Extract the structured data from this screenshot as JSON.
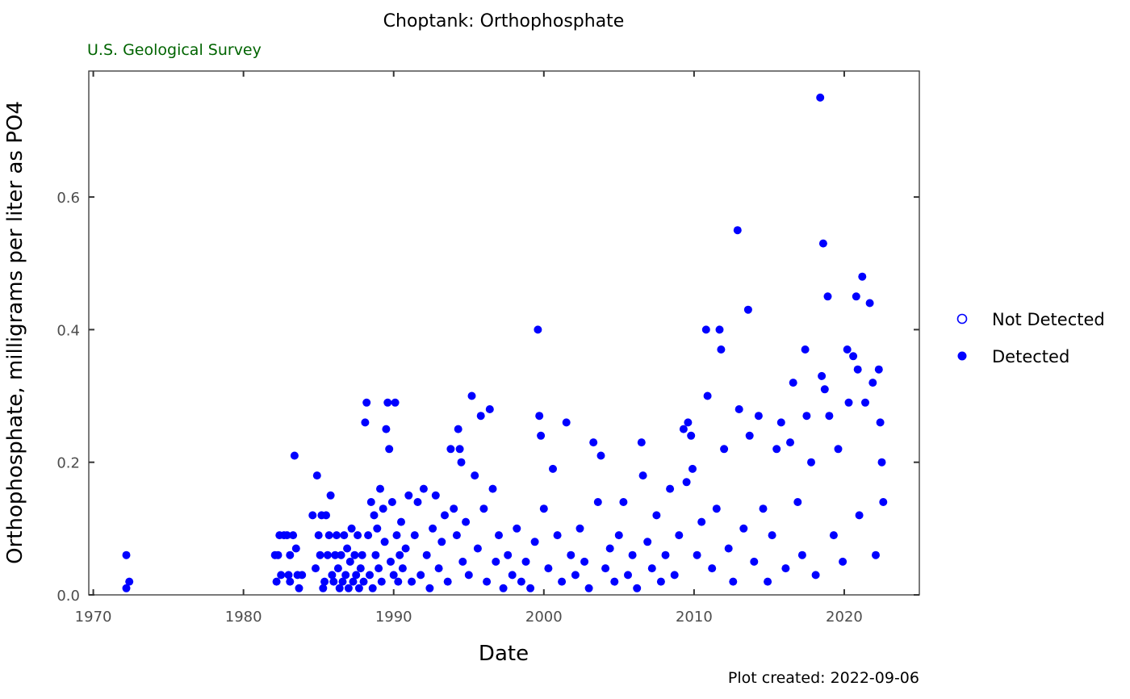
{
  "chart_data": {
    "type": "scatter",
    "title": "Choptank: Orthophosphate",
    "subtitle": "U.S. Geological Survey",
    "xlabel": "Date",
    "ylabel": "Orthophosphate, milligrams per liter as PO4",
    "caption": "Plot created: 2022-09-06",
    "xlim": [
      1969.7,
      2025.0
    ],
    "ylim": [
      0.0,
      0.79
    ],
    "x_ticks": [
      1970,
      1980,
      1990,
      2000,
      2010,
      2020
    ],
    "y_ticks": [
      0.0,
      0.2,
      0.4,
      0.6
    ],
    "y_tick_labels": [
      "0.0",
      "0.2",
      "0.4",
      "0.6"
    ],
    "grid": false,
    "legend_position": "right",
    "colors": {
      "points": "#0000ff",
      "subtitle": "#006400",
      "axis": "#333333"
    },
    "series": [
      {
        "name": "Not Detected",
        "marker": "open-circle",
        "points": []
      },
      {
        "name": "Detected",
        "marker": "filled-circle",
        "points": [
          [
            1972.2,
            0.06
          ],
          [
            1972.2,
            0.01
          ],
          [
            1972.4,
            0.02
          ],
          [
            1982.1,
            0.06
          ],
          [
            1982.2,
            0.02
          ],
          [
            1982.3,
            0.06
          ],
          [
            1982.4,
            0.09
          ],
          [
            1982.5,
            0.03
          ],
          [
            1982.7,
            0.09
          ],
          [
            1982.9,
            0.09
          ],
          [
            1983.0,
            0.03
          ],
          [
            1983.1,
            0.02
          ],
          [
            1983.1,
            0.06
          ],
          [
            1983.3,
            0.09
          ],
          [
            1983.4,
            0.21
          ],
          [
            1983.5,
            0.07
          ],
          [
            1983.6,
            0.03
          ],
          [
            1983.7,
            0.01
          ],
          [
            1983.9,
            0.03
          ],
          [
            1984.6,
            0.12
          ],
          [
            1984.8,
            0.04
          ],
          [
            1984.9,
            0.18
          ],
          [
            1985.0,
            0.09
          ],
          [
            1985.1,
            0.06
          ],
          [
            1985.2,
            0.12
          ],
          [
            1985.3,
            0.01
          ],
          [
            1985.4,
            0.02
          ],
          [
            1985.5,
            0.12
          ],
          [
            1985.6,
            0.06
          ],
          [
            1985.7,
            0.09
          ],
          [
            1985.8,
            0.15
          ],
          [
            1985.9,
            0.03
          ],
          [
            1986.0,
            0.02
          ],
          [
            1986.1,
            0.06
          ],
          [
            1986.2,
            0.09
          ],
          [
            1986.3,
            0.04
          ],
          [
            1986.4,
            0.01
          ],
          [
            1986.5,
            0.06
          ],
          [
            1986.6,
            0.02
          ],
          [
            1986.7,
            0.09
          ],
          [
            1986.8,
            0.03
          ],
          [
            1986.9,
            0.07
          ],
          [
            1987.0,
            0.01
          ],
          [
            1987.1,
            0.05
          ],
          [
            1987.2,
            0.1
          ],
          [
            1987.3,
            0.02
          ],
          [
            1987.4,
            0.06
          ],
          [
            1987.5,
            0.03
          ],
          [
            1987.6,
            0.09
          ],
          [
            1987.7,
            0.01
          ],
          [
            1987.8,
            0.04
          ],
          [
            1987.9,
            0.06
          ],
          [
            1988.0,
            0.02
          ],
          [
            1988.1,
            0.26
          ],
          [
            1988.2,
            0.29
          ],
          [
            1988.3,
            0.09
          ],
          [
            1988.4,
            0.03
          ],
          [
            1988.5,
            0.14
          ],
          [
            1988.6,
            0.01
          ],
          [
            1988.7,
            0.12
          ],
          [
            1988.8,
            0.06
          ],
          [
            1988.9,
            0.1
          ],
          [
            1989.0,
            0.04
          ],
          [
            1989.1,
            0.16
          ],
          [
            1989.2,
            0.02
          ],
          [
            1989.3,
            0.13
          ],
          [
            1989.4,
            0.08
          ],
          [
            1989.5,
            0.25
          ],
          [
            1989.6,
            0.29
          ],
          [
            1989.7,
            0.22
          ],
          [
            1989.8,
            0.05
          ],
          [
            1989.9,
            0.14
          ],
          [
            1990.0,
            0.03
          ],
          [
            1990.1,
            0.29
          ],
          [
            1990.2,
            0.09
          ],
          [
            1990.3,
            0.02
          ],
          [
            1990.4,
            0.06
          ],
          [
            1990.5,
            0.11
          ],
          [
            1990.6,
            0.04
          ],
          [
            1990.8,
            0.07
          ],
          [
            1991.0,
            0.15
          ],
          [
            1991.2,
            0.02
          ],
          [
            1991.4,
            0.09
          ],
          [
            1991.6,
            0.14
          ],
          [
            1991.8,
            0.03
          ],
          [
            1992.0,
            0.16
          ],
          [
            1992.2,
            0.06
          ],
          [
            1992.4,
            0.01
          ],
          [
            1992.6,
            0.1
          ],
          [
            1992.8,
            0.15
          ],
          [
            1993.0,
            0.04
          ],
          [
            1993.2,
            0.08
          ],
          [
            1993.4,
            0.12
          ],
          [
            1993.6,
            0.02
          ],
          [
            1993.8,
            0.22
          ],
          [
            1994.0,
            0.13
          ],
          [
            1994.2,
            0.09
          ],
          [
            1994.3,
            0.25
          ],
          [
            1994.4,
            0.22
          ],
          [
            1994.5,
            0.2
          ],
          [
            1994.6,
            0.05
          ],
          [
            1994.8,
            0.11
          ],
          [
            1995.0,
            0.03
          ],
          [
            1995.2,
            0.3
          ],
          [
            1995.4,
            0.18
          ],
          [
            1995.6,
            0.07
          ],
          [
            1995.8,
            0.27
          ],
          [
            1996.0,
            0.13
          ],
          [
            1996.2,
            0.02
          ],
          [
            1996.4,
            0.28
          ],
          [
            1996.6,
            0.16
          ],
          [
            1996.8,
            0.05
          ],
          [
            1997.0,
            0.09
          ],
          [
            1997.3,
            0.01
          ],
          [
            1997.6,
            0.06
          ],
          [
            1997.9,
            0.03
          ],
          [
            1998.2,
            0.1
          ],
          [
            1998.5,
            0.02
          ],
          [
            1998.8,
            0.05
          ],
          [
            1999.1,
            0.01
          ],
          [
            1999.4,
            0.08
          ],
          [
            1999.6,
            0.4
          ],
          [
            1999.7,
            0.27
          ],
          [
            1999.8,
            0.24
          ],
          [
            2000.0,
            0.13
          ],
          [
            2000.3,
            0.04
          ],
          [
            2000.6,
            0.19
          ],
          [
            2000.9,
            0.09
          ],
          [
            2001.2,
            0.02
          ],
          [
            2001.5,
            0.26
          ],
          [
            2001.8,
            0.06
          ],
          [
            2002.1,
            0.03
          ],
          [
            2002.4,
            0.1
          ],
          [
            2002.7,
            0.05
          ],
          [
            2003.0,
            0.01
          ],
          [
            2003.3,
            0.23
          ],
          [
            2003.6,
            0.14
          ],
          [
            2003.8,
            0.21
          ],
          [
            2004.1,
            0.04
          ],
          [
            2004.4,
            0.07
          ],
          [
            2004.7,
            0.02
          ],
          [
            2005.0,
            0.09
          ],
          [
            2005.3,
            0.14
          ],
          [
            2005.6,
            0.03
          ],
          [
            2005.9,
            0.06
          ],
          [
            2006.2,
            0.01
          ],
          [
            2006.5,
            0.23
          ],
          [
            2006.6,
            0.18
          ],
          [
            2006.9,
            0.08
          ],
          [
            2007.2,
            0.04
          ],
          [
            2007.5,
            0.12
          ],
          [
            2007.8,
            0.02
          ],
          [
            2008.1,
            0.06
          ],
          [
            2008.4,
            0.16
          ],
          [
            2008.7,
            0.03
          ],
          [
            2009.0,
            0.09
          ],
          [
            2009.3,
            0.25
          ],
          [
            2009.5,
            0.17
          ],
          [
            2009.6,
            0.26
          ],
          [
            2009.8,
            0.24
          ],
          [
            2009.9,
            0.19
          ],
          [
            2010.2,
            0.06
          ],
          [
            2010.5,
            0.11
          ],
          [
            2010.8,
            0.4
          ],
          [
            2010.9,
            0.3
          ],
          [
            2011.2,
            0.04
          ],
          [
            2011.5,
            0.13
          ],
          [
            2011.7,
            0.4
          ],
          [
            2011.8,
            0.37
          ],
          [
            2012.0,
            0.22
          ],
          [
            2012.3,
            0.07
          ],
          [
            2012.6,
            0.02
          ],
          [
            2012.9,
            0.55
          ],
          [
            2013.0,
            0.28
          ],
          [
            2013.3,
            0.1
          ],
          [
            2013.6,
            0.43
          ],
          [
            2013.7,
            0.24
          ],
          [
            2014.0,
            0.05
          ],
          [
            2014.3,
            0.27
          ],
          [
            2014.6,
            0.13
          ],
          [
            2014.9,
            0.02
          ],
          [
            2015.2,
            0.09
          ],
          [
            2015.5,
            0.22
          ],
          [
            2015.8,
            0.26
          ],
          [
            2016.1,
            0.04
          ],
          [
            2016.4,
            0.23
          ],
          [
            2016.6,
            0.32
          ],
          [
            2016.9,
            0.14
          ],
          [
            2017.2,
            0.06
          ],
          [
            2017.4,
            0.37
          ],
          [
            2017.5,
            0.27
          ],
          [
            2017.8,
            0.2
          ],
          [
            2018.1,
            0.03
          ],
          [
            2018.4,
            0.75
          ],
          [
            2018.5,
            0.33
          ],
          [
            2018.6,
            0.53
          ],
          [
            2018.7,
            0.31
          ],
          [
            2018.9,
            0.45
          ],
          [
            2019.0,
            0.27
          ],
          [
            2019.3,
            0.09
          ],
          [
            2019.6,
            0.22
          ],
          [
            2019.9,
            0.05
          ],
          [
            2020.2,
            0.37
          ],
          [
            2020.3,
            0.29
          ],
          [
            2020.6,
            0.36
          ],
          [
            2020.8,
            0.45
          ],
          [
            2020.9,
            0.34
          ],
          [
            2021.0,
            0.12
          ],
          [
            2021.2,
            0.48
          ],
          [
            2021.4,
            0.29
          ],
          [
            2021.7,
            0.44
          ],
          [
            2021.9,
            0.32
          ],
          [
            2022.1,
            0.06
          ],
          [
            2022.3,
            0.34
          ],
          [
            2022.4,
            0.26
          ],
          [
            2022.5,
            0.2
          ],
          [
            2022.6,
            0.14
          ]
        ]
      }
    ]
  }
}
